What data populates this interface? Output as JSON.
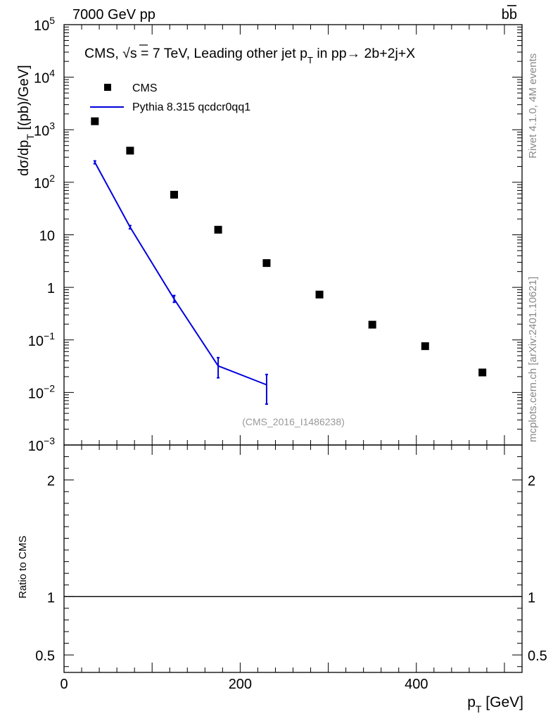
{
  "header": {
    "left": "7000 GeV pp",
    "right_main": "b",
    "right_bar": "b"
  },
  "side_labels": {
    "rivet": "Rivet 4.1.0,  4M events",
    "source": "mcplots.cern.ch [arXiv:2401.10621]"
  },
  "chart_data": [
    {
      "type": "scatter",
      "panel": "main",
      "title_parts": {
        "pre": "CMS, ",
        "sqrt": "√s",
        "post": " = 7 TeV, Leading other jet p",
        "sub": "T",
        "post2": " in pp",
        "arrow": "→",
        "post3": "  2b+2j+X"
      },
      "ylabel": {
        "main": "dσ/dp",
        "sub": "T",
        "unit": "  [(pb)/GeV]"
      },
      "yscale": "log",
      "ylim": [
        0.001,
        100000
      ],
      "xlim": [
        0,
        520
      ],
      "xticks": [
        0,
        200,
        400
      ],
      "ytick_labels": [
        {
          "value": 100000,
          "base": "10",
          "exp": "5"
        },
        {
          "value": 10000,
          "base": "10",
          "exp": "4"
        },
        {
          "value": 1000,
          "base": "10",
          "exp": "3"
        },
        {
          "value": 100,
          "base": "10",
          "exp": "2"
        },
        {
          "value": 10,
          "base": "10",
          "exp": ""
        },
        {
          "value": 1,
          "base": "1",
          "exp": ""
        },
        {
          "value": 0.1,
          "base": "10",
          "exp": "−1"
        },
        {
          "value": 0.01,
          "base": "10",
          "exp": "−2"
        },
        {
          "value": 0.001,
          "base": "10",
          "exp": "−3"
        }
      ],
      "watermark": "(CMS_2016_I1486238)",
      "legend_position": "top-left",
      "series": [
        {
          "name": "CMS",
          "kind": "markers",
          "color": "#000000",
          "x": [
            35,
            75,
            125,
            175,
            230,
            290,
            350,
            410,
            475
          ],
          "y": [
            1450,
            400,
            58,
            12.5,
            2.9,
            0.73,
            0.195,
            0.076,
            0.024
          ]
        },
        {
          "name": "Pythia 8.315 qcdcr0qq1",
          "kind": "line",
          "color": "#0000dd",
          "x": [
            35,
            75,
            125,
            175,
            230
          ],
          "y": [
            240,
            14,
            0.6,
            0.032,
            0.014
          ],
          "yerr_lo": [
            225,
            13,
            0.52,
            0.019,
            0.006
          ],
          "yerr_hi": [
            255,
            15,
            0.7,
            0.046,
            0.022
          ]
        }
      ]
    },
    {
      "type": "line",
      "panel": "ratio",
      "ylabel": "Ratio to CMS",
      "xlabel": {
        "main": "p",
        "sub": "T",
        "unit": " [GeV]"
      },
      "ylim": [
        0.35,
        2.3
      ],
      "xlim": [
        0,
        520
      ],
      "xticks": [
        0,
        200,
        400
      ],
      "yticks": [
        0.5,
        1,
        2
      ],
      "ytick_labels": [
        "0.5",
        "1",
        "2"
      ],
      "reference": 1
    }
  ]
}
